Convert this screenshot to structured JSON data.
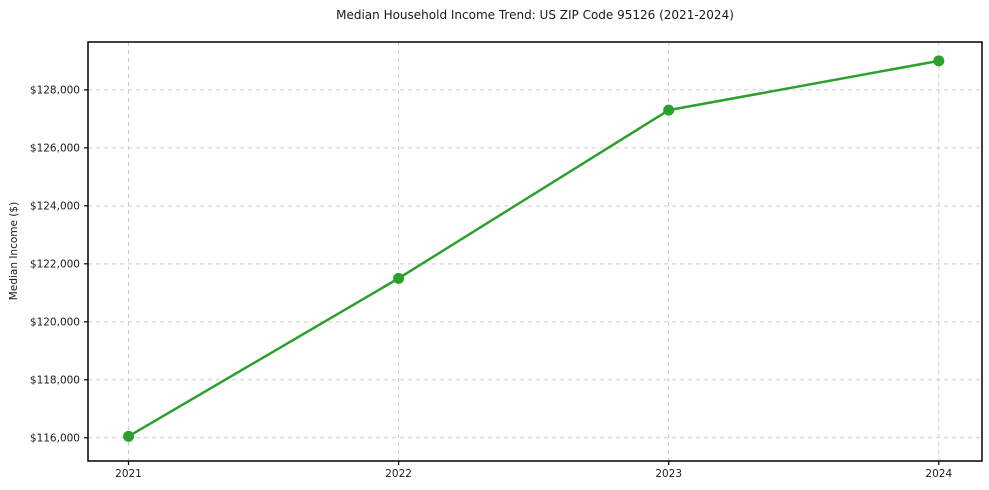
{
  "chart_data": {
    "type": "line",
    "title": "Median Household Income Trend: US ZIP Code 95126 (2021-2024)",
    "xlabel": "",
    "ylabel": "Median Income ($)",
    "x": [
      2021,
      2022,
      2023,
      2024
    ],
    "values": [
      116050,
      121500,
      127300,
      129000
    ],
    "xtick_labels": [
      "2021",
      "2022",
      "2023",
      "2024"
    ],
    "ytick_values": [
      116000,
      118000,
      120000,
      122000,
      124000,
      126000,
      128000
    ],
    "ytick_labels": [
      "$116,000",
      "$118,000",
      "$120,000",
      "$122,000",
      "$124,000",
      "$126,000",
      "$128,000"
    ],
    "xlim": [
      2020.85,
      2024.16
    ],
    "ylim": [
      115200,
      129650
    ],
    "grid": true,
    "grid_style": "dashed",
    "legend_position": "none",
    "line_color": "#2ca02c",
    "marker": "circle"
  },
  "colors": {
    "line": "#2ca02c",
    "grid": "#cccccc",
    "frame": "#000000",
    "text": "#1a1a1a",
    "background": "#ffffff"
  }
}
